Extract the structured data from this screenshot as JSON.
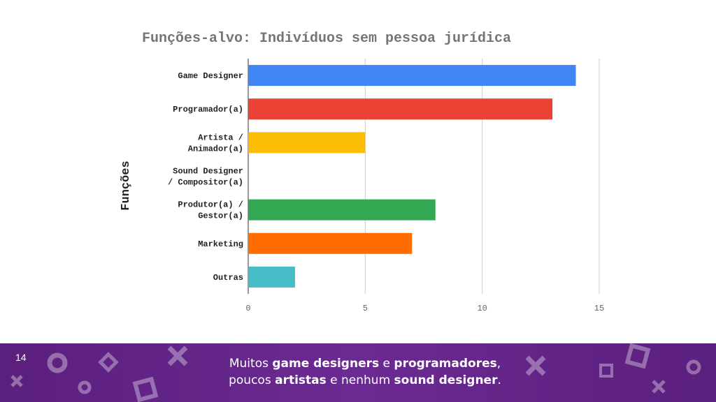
{
  "slide": {
    "page_number": "14",
    "caption_line1": [
      {
        "text": "Muitos ",
        "bold": false
      },
      {
        "text": "game designers",
        "bold": true
      },
      {
        "text": " e ",
        "bold": false
      },
      {
        "text": "programadores",
        "bold": true
      },
      {
        "text": ",",
        "bold": false
      }
    ],
    "caption_line2": [
      {
        "text": "poucos ",
        "bold": false
      },
      {
        "text": "artistas",
        "bold": true
      },
      {
        "text": " e nenhum ",
        "bold": false
      },
      {
        "text": "sound designer",
        "bold": true
      },
      {
        "text": ".",
        "bold": false
      }
    ],
    "decorations": [
      "ring-icon",
      "diamond-icon",
      "cross-icon",
      "square-icon",
      "cross-icon",
      "ring-icon",
      "square-icon",
      "cross-icon",
      "ring-icon",
      "square-icon"
    ]
  },
  "chart_data": {
    "type": "bar",
    "orientation": "horizontal",
    "title": "Funções-alvo: Indivíduos sem pessoa jurídica",
    "xlabel": "",
    "ylabel": "Funções",
    "categories": [
      [
        "Game Designer"
      ],
      [
        "Programador(a)"
      ],
      [
        "Artista /",
        "Animador(a)"
      ],
      [
        "Sound Designer",
        "/ Compositor(a)"
      ],
      [
        "Produtor(a) /",
        "Gestor(a)"
      ],
      [
        "Marketing"
      ],
      [
        "Outras"
      ]
    ],
    "values": [
      14,
      13,
      5,
      0,
      8,
      7,
      2
    ],
    "colors": [
      "#4285f4",
      "#ea4335",
      "#fbbc04",
      "#9e9e9e",
      "#34a853",
      "#ff6d01",
      "#46bdc6"
    ],
    "xlim": [
      0,
      15
    ],
    "xticks": [
      "0",
      "5",
      "10",
      "15"
    ],
    "grid": true,
    "legend": "none"
  }
}
